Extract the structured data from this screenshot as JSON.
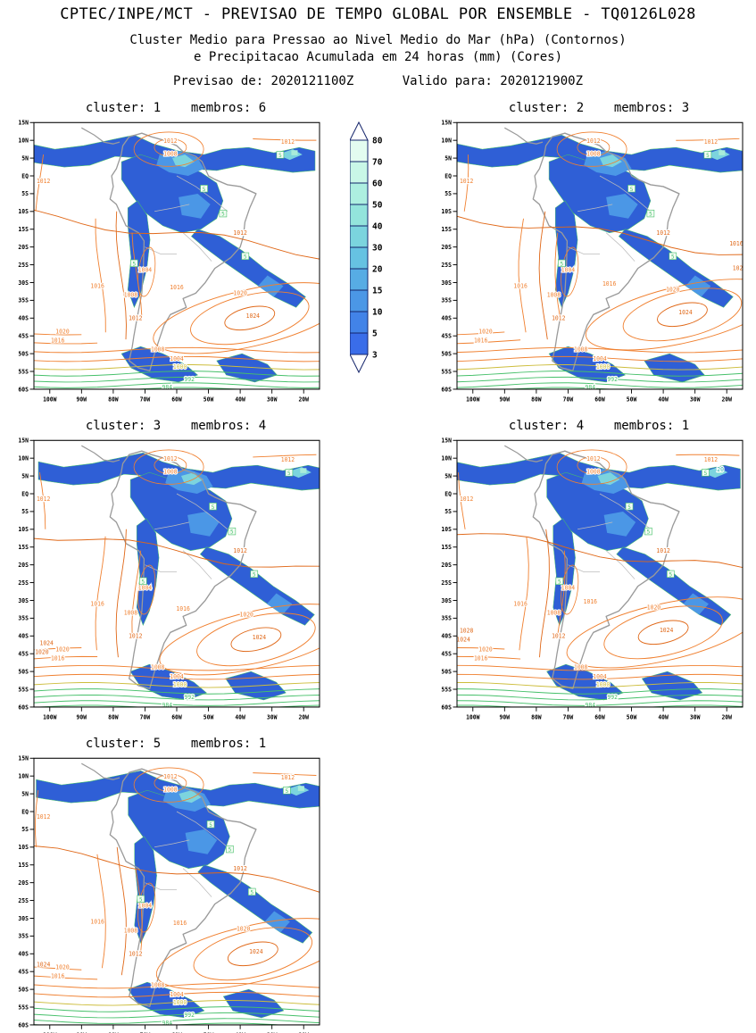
{
  "header": {
    "title": "CPTEC/INPE/MCT - PREVISAO DE TEMPO GLOBAL POR ENSEMBLE - TQ0126L028",
    "subtitle_line1": "Cluster Medio para Pressao ao Nivel Medio do Mar (hPa) (Contornos)",
    "subtitle_line2": "e Precipitacao Acumulada em 24 horas (mm) (Cores)",
    "init_label": "Previsao de: 2020121100Z",
    "valid_label": "Valido para: 2020121900Z"
  },
  "chart_data": {
    "type": "heatmap",
    "title": "CPTEC/INPE/MCT - PREVISAO DE TEMPO GLOBAL POR ENSEMBLE - TQ0126L028",
    "subtitle": "Cluster Medio para Pressao ao Nivel Medio do Mar (hPa) (Contornos) e Precipitacao Acumulada em 24 horas (mm) (Cores)",
    "forecast_init": "2020121100Z",
    "forecast_valid": "2020121900Z",
    "panels": [
      {
        "label": "cluster: 1    membros: 6",
        "cluster": 1,
        "membros": 6
      },
      {
        "label": "cluster: 2    membros: 3",
        "cluster": 2,
        "membros": 3
      },
      {
        "label": "cluster: 3    membros: 4",
        "cluster": 3,
        "membros": 4
      },
      {
        "label": "cluster: 4    membros: 1",
        "cluster": 4,
        "membros": 1
      },
      {
        "label": "cluster: 5    membros: 1",
        "cluster": 5,
        "membros": 1
      }
    ],
    "x_ticks": [
      "100W",
      "90W",
      "80W",
      "70W",
      "60W",
      "50W",
      "40W",
      "30W",
      "20W"
    ],
    "y_ticks": [
      "15N",
      "10N",
      "5N",
      "EQ",
      "5S",
      "10S",
      "15S",
      "20S",
      "25S",
      "30S",
      "35S",
      "40S",
      "45S",
      "50S",
      "55S",
      "60S"
    ],
    "lon_range_deg": [
      -105,
      -15
    ],
    "lat_range_deg": [
      -60,
      15
    ],
    "grid": false,
    "legend_position": "between first and second panel, vertical colorbar",
    "colorbar": {
      "unit": "mm",
      "tick_labels": [
        "80",
        "70",
        "60",
        "50",
        "40",
        "30",
        "20",
        "15",
        "10",
        "5",
        "3"
      ],
      "segment_colors_top_to_bottom": [
        "#ffffff",
        "#e3fcf0",
        "#c9f7e7",
        "#adefe0",
        "#93e4dc",
        "#7bd4de",
        "#66c2e2",
        "#57ace4",
        "#4b97e6",
        "#4283e8",
        "#3a6de9",
        "#ffffff"
      ]
    },
    "pressure_contour_labels_hpa": [
      "984",
      "992",
      "1000",
      "1004",
      "1008",
      "1012",
      "1016",
      "1020",
      "1024",
      "1028"
    ],
    "precip_contour_labels_mm": [
      "5",
      "20"
    ],
    "colors": {
      "precip_base": "#2f5fd6",
      "precip_mid": "#4b97e6",
      "precip_high": "#7cd4de",
      "precip_peak": "#a9ecd9",
      "contour_orange": "#f08030",
      "contour_deep_orange": "#e06818",
      "contour_yellow": "#cdbd3c",
      "contour_green": "#46c06a",
      "contour_teal": "#2ab0a8",
      "coastline": "#9a9a9a",
      "border": "#bcbcbc"
    }
  }
}
